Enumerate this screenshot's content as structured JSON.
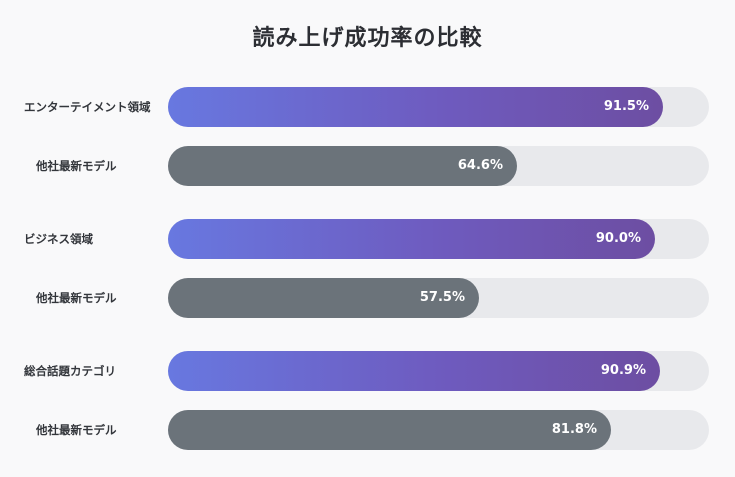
{
  "chart_data": {
    "type": "bar",
    "orientation": "horizontal",
    "title": "読み上げ成功率の比較",
    "xlim": [
      0,
      100
    ],
    "unit": "%",
    "colors": {
      "ours_start": "#6878e0",
      "ours_end": "#6d4ea2",
      "other": "#6b737a",
      "track": "#e8e9ec"
    },
    "groups": [
      {
        "bars": [
          {
            "label": "エンターテイメント領域",
            "value": 91.5,
            "value_label": "91.5%",
            "kind": "ours"
          },
          {
            "label": "他社最新モデル",
            "value": 64.6,
            "value_label": "64.6%",
            "kind": "other"
          }
        ]
      },
      {
        "bars": [
          {
            "label": "ビジネス領域",
            "value": 90.0,
            "value_label": "90.0%",
            "kind": "ours"
          },
          {
            "label": "他社最新モデル",
            "value": 57.5,
            "value_label": "57.5%",
            "kind": "other"
          }
        ]
      },
      {
        "bars": [
          {
            "label": "総合話題カテゴリ",
            "value": 90.9,
            "value_label": "90.9%",
            "kind": "ours"
          },
          {
            "label": "他社最新モデル",
            "value": 81.8,
            "value_label": "81.8%",
            "kind": "other"
          }
        ]
      }
    ]
  }
}
